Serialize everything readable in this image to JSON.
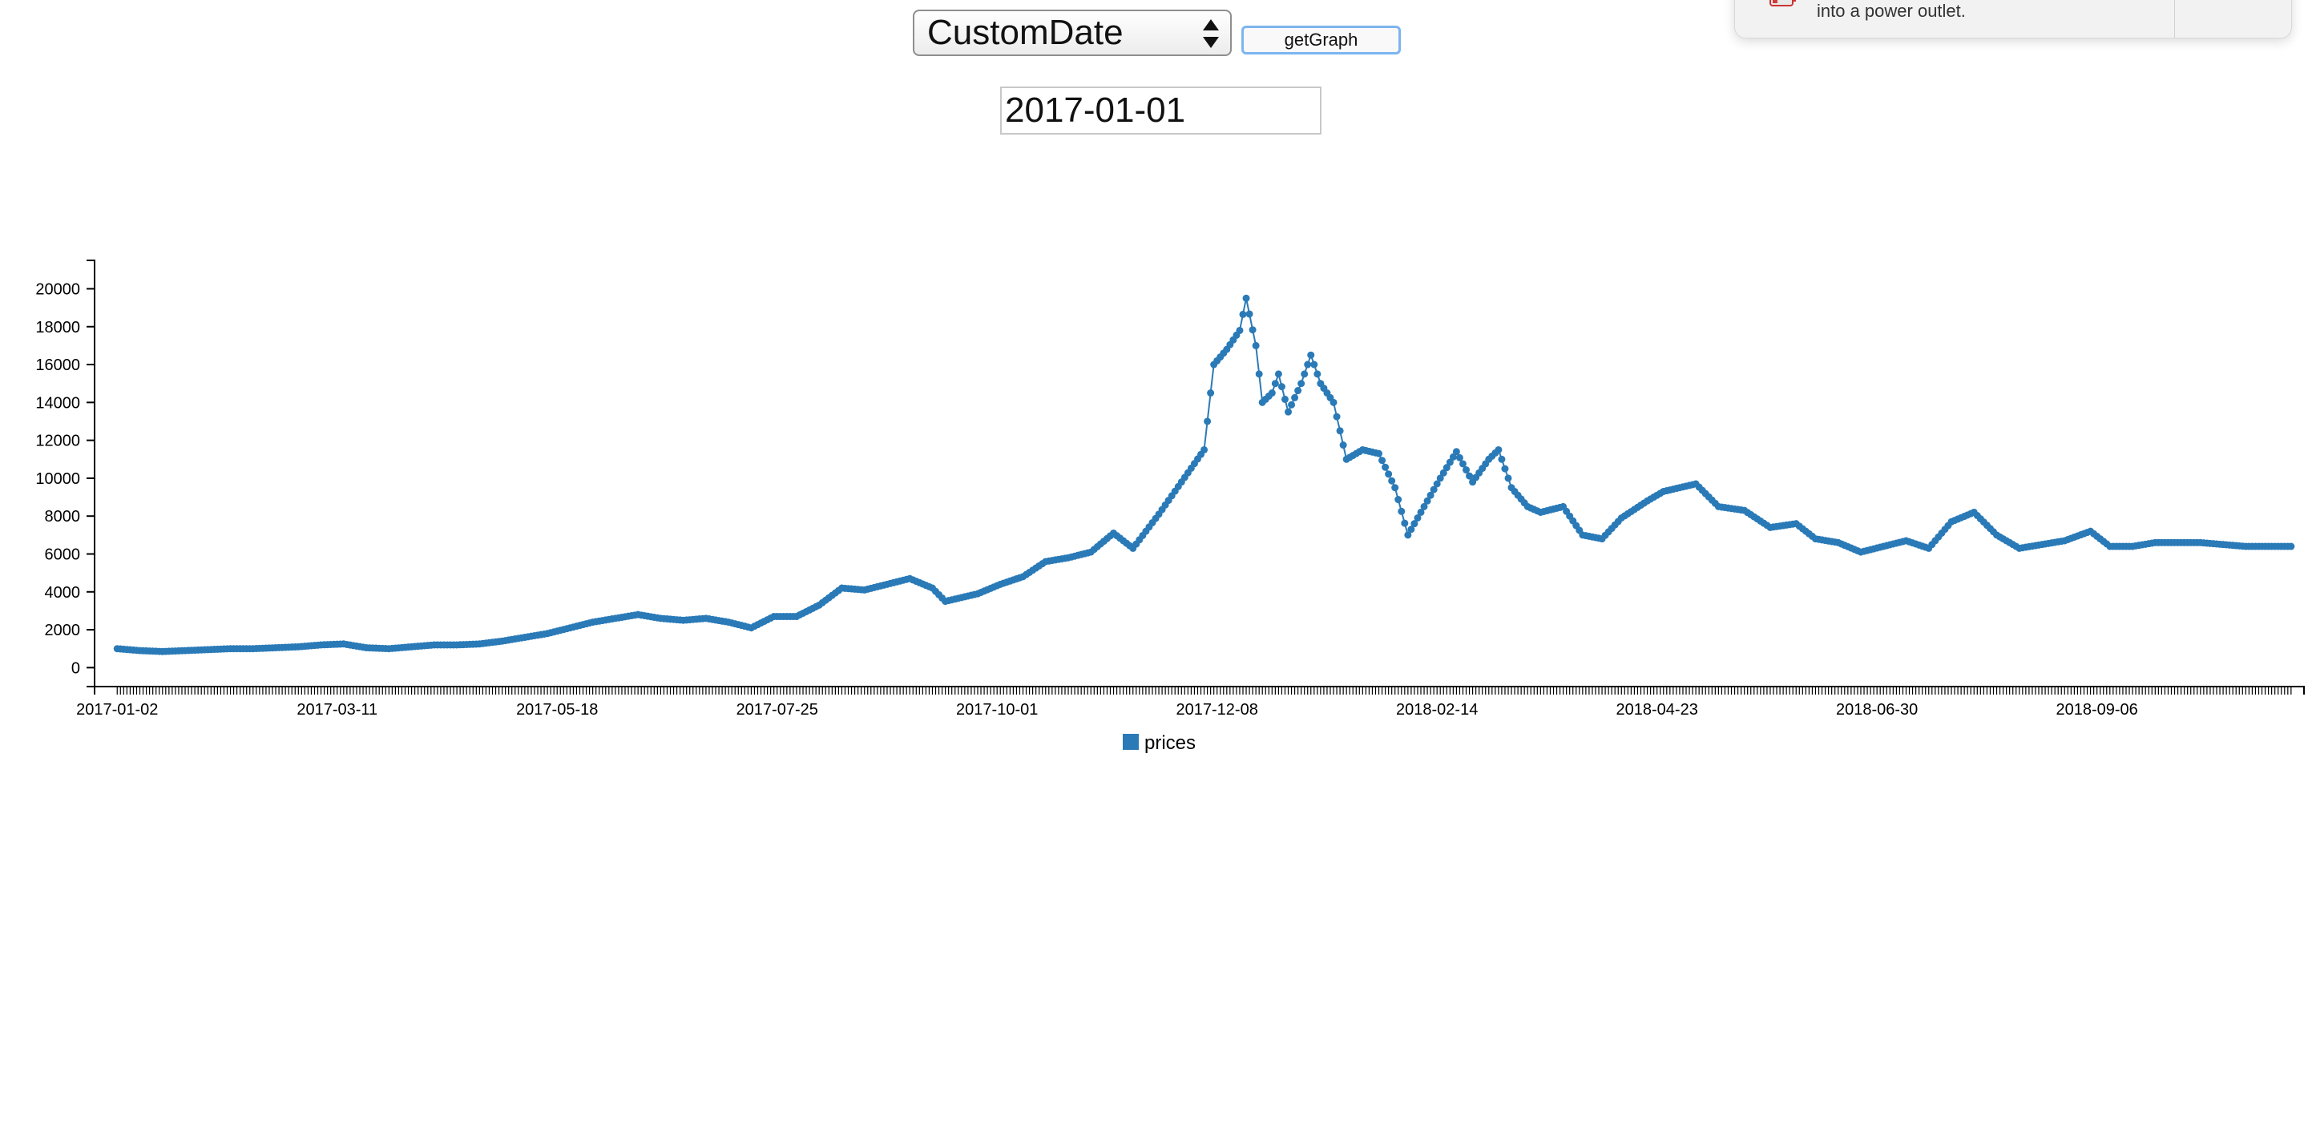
{
  "controls": {
    "range_select_value": "CustomDate",
    "get_graph_label": "getGraph",
    "date_value": "2017-01-01"
  },
  "notification": {
    "text": "into a power outlet.",
    "icon": "battery-icon"
  },
  "colors": {
    "series": "#2a7ab7",
    "axis": "#000000"
  },
  "chart_data": {
    "type": "line",
    "markers": true,
    "series": [
      {
        "name": "prices",
        "points": [
          [
            "2017-01-02",
            1000
          ],
          [
            "2017-01-09",
            900
          ],
          [
            "2017-01-16",
            850
          ],
          [
            "2017-01-23",
            900
          ],
          [
            "2017-01-30",
            950
          ],
          [
            "2017-02-06",
            1000
          ],
          [
            "2017-02-13",
            1000
          ],
          [
            "2017-02-20",
            1050
          ],
          [
            "2017-02-27",
            1100
          ],
          [
            "2017-03-06",
            1200
          ],
          [
            "2017-03-13",
            1250
          ],
          [
            "2017-03-20",
            1050
          ],
          [
            "2017-03-27",
            1000
          ],
          [
            "2017-04-03",
            1100
          ],
          [
            "2017-04-10",
            1200
          ],
          [
            "2017-04-17",
            1200
          ],
          [
            "2017-04-24",
            1250
          ],
          [
            "2017-05-01",
            1400
          ],
          [
            "2017-05-08",
            1600
          ],
          [
            "2017-05-15",
            1800
          ],
          [
            "2017-05-22",
            2100
          ],
          [
            "2017-05-29",
            2400
          ],
          [
            "2017-06-05",
            2600
          ],
          [
            "2017-06-12",
            2800
          ],
          [
            "2017-06-19",
            2600
          ],
          [
            "2017-06-26",
            2500
          ],
          [
            "2017-07-03",
            2600
          ],
          [
            "2017-07-10",
            2400
          ],
          [
            "2017-07-17",
            2100
          ],
          [
            "2017-07-24",
            2700
          ],
          [
            "2017-07-31",
            2700
          ],
          [
            "2017-08-07",
            3300
          ],
          [
            "2017-08-14",
            4200
          ],
          [
            "2017-08-21",
            4100
          ],
          [
            "2017-08-28",
            4400
          ],
          [
            "2017-09-04",
            4700
          ],
          [
            "2017-09-11",
            4200
          ],
          [
            "2017-09-15",
            3500
          ],
          [
            "2017-09-25",
            3900
          ],
          [
            "2017-10-02",
            4400
          ],
          [
            "2017-10-09",
            4800
          ],
          [
            "2017-10-16",
            5600
          ],
          [
            "2017-10-23",
            5800
          ],
          [
            "2017-10-30",
            6100
          ],
          [
            "2017-11-06",
            7100
          ],
          [
            "2017-11-12",
            6300
          ],
          [
            "2017-11-20",
            8100
          ],
          [
            "2017-11-27",
            9800
          ],
          [
            "2017-12-04",
            11500
          ],
          [
            "2017-12-07",
            16000
          ],
          [
            "2017-12-11",
            16800
          ],
          [
            "2017-12-15",
            17800
          ],
          [
            "2017-12-17",
            19500
          ],
          [
            "2017-12-20",
            17000
          ],
          [
            "2017-12-22",
            14000
          ],
          [
            "2017-12-25",
            14500
          ],
          [
            "2017-12-27",
            15500
          ],
          [
            "2017-12-30",
            13500
          ],
          [
            "2018-01-03",
            15000
          ],
          [
            "2018-01-06",
            16500
          ],
          [
            "2018-01-09",
            15000
          ],
          [
            "2018-01-13",
            14000
          ],
          [
            "2018-01-17",
            11000
          ],
          [
            "2018-01-22",
            11500
          ],
          [
            "2018-01-27",
            11300
          ],
          [
            "2018-02-01",
            9500
          ],
          [
            "2018-02-05",
            7000
          ],
          [
            "2018-02-10",
            8500
          ],
          [
            "2018-02-15",
            10000
          ],
          [
            "2018-02-20",
            11400
          ],
          [
            "2018-02-25",
            9800
          ],
          [
            "2018-03-02",
            11000
          ],
          [
            "2018-03-05",
            11500
          ],
          [
            "2018-03-09",
            9500
          ],
          [
            "2018-03-14",
            8500
          ],
          [
            "2018-03-18",
            8200
          ],
          [
            "2018-03-25",
            8500
          ],
          [
            "2018-03-31",
            7000
          ],
          [
            "2018-04-06",
            6800
          ],
          [
            "2018-04-12",
            7900
          ],
          [
            "2018-04-20",
            8800
          ],
          [
            "2018-04-25",
            9300
          ],
          [
            "2018-05-05",
            9700
          ],
          [
            "2018-05-12",
            8500
          ],
          [
            "2018-05-20",
            8300
          ],
          [
            "2018-05-28",
            7400
          ],
          [
            "2018-06-05",
            7600
          ],
          [
            "2018-06-11",
            6800
          ],
          [
            "2018-06-18",
            6600
          ],
          [
            "2018-06-25",
            6100
          ],
          [
            "2018-07-02",
            6400
          ],
          [
            "2018-07-09",
            6700
          ],
          [
            "2018-07-16",
            6300
          ],
          [
            "2018-07-23",
            7700
          ],
          [
            "2018-07-30",
            8200
          ],
          [
            "2018-08-06",
            7000
          ],
          [
            "2018-08-13",
            6300
          ],
          [
            "2018-08-20",
            6500
          ],
          [
            "2018-08-27",
            6700
          ],
          [
            "2018-09-04",
            7200
          ],
          [
            "2018-09-10",
            6400
          ],
          [
            "2018-09-17",
            6400
          ],
          [
            "2018-09-24",
            6600
          ],
          [
            "2018-10-01",
            6600
          ],
          [
            "2018-10-08",
            6600
          ],
          [
            "2018-10-15",
            6500
          ],
          [
            "2018-10-22",
            6400
          ],
          [
            "2018-10-29",
            6400
          ],
          [
            "2018-11-05",
            6400
          ]
        ]
      }
    ],
    "x_tick_labels": [
      "2017-01-02",
      "2017-03-11",
      "2017-05-18",
      "2017-07-25",
      "2017-10-01",
      "2017-12-08",
      "2018-02-14",
      "2018-04-23",
      "2018-06-30",
      "2018-09-06"
    ],
    "y_ticks": [
      0,
      2000,
      4000,
      6000,
      8000,
      10000,
      12000,
      14000,
      16000,
      18000,
      20000
    ],
    "xlim": [
      "2016-12-26",
      "2018-11-09"
    ],
    "ylim": [
      -1000,
      21500
    ],
    "grid": false,
    "legend_position": "bottom-center"
  }
}
